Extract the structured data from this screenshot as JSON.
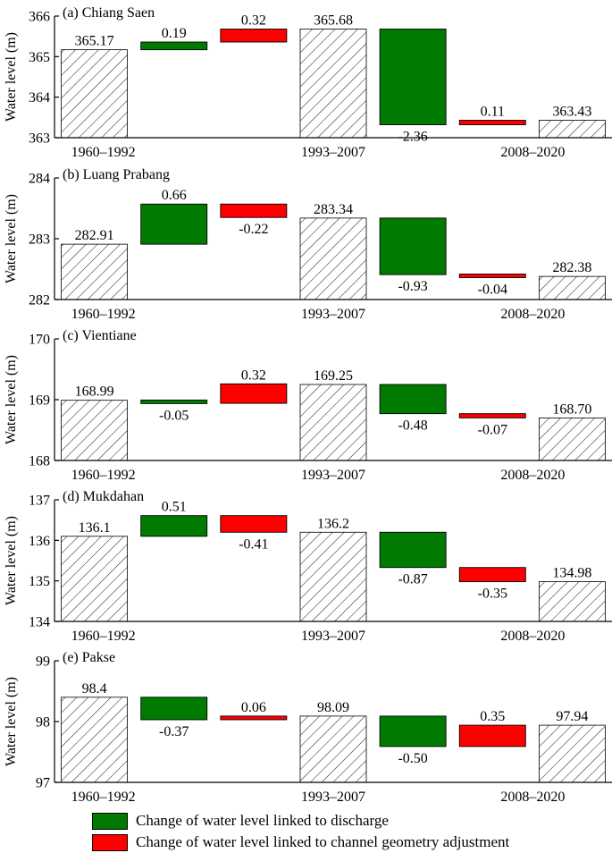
{
  "colors": {
    "discharge": "#007a00",
    "geometry": "#ff0000",
    "axis": "#000000"
  },
  "legend": {
    "discharge_label": "Change of water level linked to discharge",
    "geometry_label": "Change of water level linked to channel geometry adjustment"
  },
  "chart_data": [
    {
      "type": "bar",
      "subtype": "waterfall",
      "title": "(a) Chiang Saen",
      "ylabel": "Water level (m)",
      "ylim": [
        363,
        366
      ],
      "yticks": [
        "363",
        "364",
        "365",
        "366"
      ],
      "period_labels": [
        "1960–1992",
        "1993–2007",
        "2008–2020"
      ],
      "bars": [
        {
          "kind": "level",
          "label": "365.17",
          "value": 365.17
        },
        {
          "kind": "discharge",
          "label": "0.19",
          "from": 365.17,
          "to": 365.36
        },
        {
          "kind": "geometry",
          "label": "0.32",
          "from": 365.36,
          "to": 365.68
        },
        {
          "kind": "level",
          "label": "365.68",
          "value": 365.68
        },
        {
          "kind": "discharge",
          "label": "-2.36",
          "from": 365.68,
          "to": 363.32
        },
        {
          "kind": "geometry",
          "label": "0.11",
          "from": 363.32,
          "to": 363.43
        },
        {
          "kind": "level",
          "label": "363.43",
          "value": 363.43
        }
      ]
    },
    {
      "type": "bar",
      "subtype": "waterfall",
      "title": "(b) Luang Prabang",
      "ylabel": "Water level (m)",
      "ylim": [
        282,
        284
      ],
      "yticks": [
        "282",
        "283",
        "284"
      ],
      "period_labels": [
        "1960–1992",
        "1993–2007",
        "2008–2020"
      ],
      "bars": [
        {
          "kind": "level",
          "label": "282.91",
          "value": 282.91
        },
        {
          "kind": "discharge",
          "label": "0.66",
          "from": 282.91,
          "to": 283.57
        },
        {
          "kind": "geometry",
          "label": "-0.22",
          "from": 283.57,
          "to": 283.35
        },
        {
          "kind": "level",
          "label": "283.34",
          "value": 283.34
        },
        {
          "kind": "discharge",
          "label": "-0.93",
          "from": 283.34,
          "to": 282.41
        },
        {
          "kind": "geometry",
          "label": "-0.04",
          "from": 282.41,
          "to": 282.37
        },
        {
          "kind": "level",
          "label": "282.38",
          "value": 282.38
        }
      ]
    },
    {
      "type": "bar",
      "subtype": "waterfall",
      "title": "(c) Vientiane",
      "ylabel": "Water level (m)",
      "ylim": [
        168,
        170
      ],
      "yticks": [
        "168",
        "169",
        "170"
      ],
      "period_labels": [
        "1960–1992",
        "1993–2007",
        "2008–2020"
      ],
      "bars": [
        {
          "kind": "level",
          "label": "168.99",
          "value": 168.99
        },
        {
          "kind": "discharge",
          "label": "-0.05",
          "from": 168.99,
          "to": 168.94
        },
        {
          "kind": "geometry",
          "label": "0.32",
          "from": 168.94,
          "to": 169.26
        },
        {
          "kind": "level",
          "label": "169.25",
          "value": 169.25
        },
        {
          "kind": "discharge",
          "label": "-0.48",
          "from": 169.25,
          "to": 168.77
        },
        {
          "kind": "geometry",
          "label": "-0.07",
          "from": 168.77,
          "to": 168.7
        },
        {
          "kind": "level",
          "label": "168.70",
          "value": 168.7
        }
      ]
    },
    {
      "type": "bar",
      "subtype": "waterfall",
      "title": "(d) Mukdahan",
      "ylabel": "Water level (m)",
      "ylim": [
        134,
        137
      ],
      "yticks": [
        "134",
        "135",
        "136",
        "137"
      ],
      "period_labels": [
        "1960–1992",
        "1993–2007",
        "2008–2020"
      ],
      "bars": [
        {
          "kind": "level",
          "label": "136.1",
          "value": 136.1
        },
        {
          "kind": "discharge",
          "label": "0.51",
          "from": 136.1,
          "to": 136.61
        },
        {
          "kind": "geometry",
          "label": "-0.41",
          "from": 136.61,
          "to": 136.2
        },
        {
          "kind": "level",
          "label": "136.2",
          "value": 136.2
        },
        {
          "kind": "discharge",
          "label": "-0.87",
          "from": 136.2,
          "to": 135.33
        },
        {
          "kind": "geometry",
          "label": "-0.35",
          "from": 135.33,
          "to": 134.98
        },
        {
          "kind": "level",
          "label": "134.98",
          "value": 134.98
        }
      ]
    },
    {
      "type": "bar",
      "subtype": "waterfall",
      "title": "(e) Pakse",
      "ylabel": "Water level (m)",
      "ylim": [
        97,
        99
      ],
      "yticks": [
        "97",
        "98",
        "99"
      ],
      "period_labels": [
        "1960–1992",
        "1993–2007",
        "2008–2020"
      ],
      "bars": [
        {
          "kind": "level",
          "label": "98.4",
          "value": 98.4
        },
        {
          "kind": "discharge",
          "label": "-0.37",
          "from": 98.4,
          "to": 98.03
        },
        {
          "kind": "geometry",
          "label": "0.06",
          "from": 98.03,
          "to": 98.09
        },
        {
          "kind": "level",
          "label": "98.09",
          "value": 98.09
        },
        {
          "kind": "discharge",
          "label": "-0.50",
          "from": 98.09,
          "to": 97.59
        },
        {
          "kind": "geometry",
          "label": "0.35",
          "from": 97.59,
          "to": 97.94
        },
        {
          "kind": "level",
          "label": "97.94",
          "value": 97.94
        }
      ]
    }
  ]
}
